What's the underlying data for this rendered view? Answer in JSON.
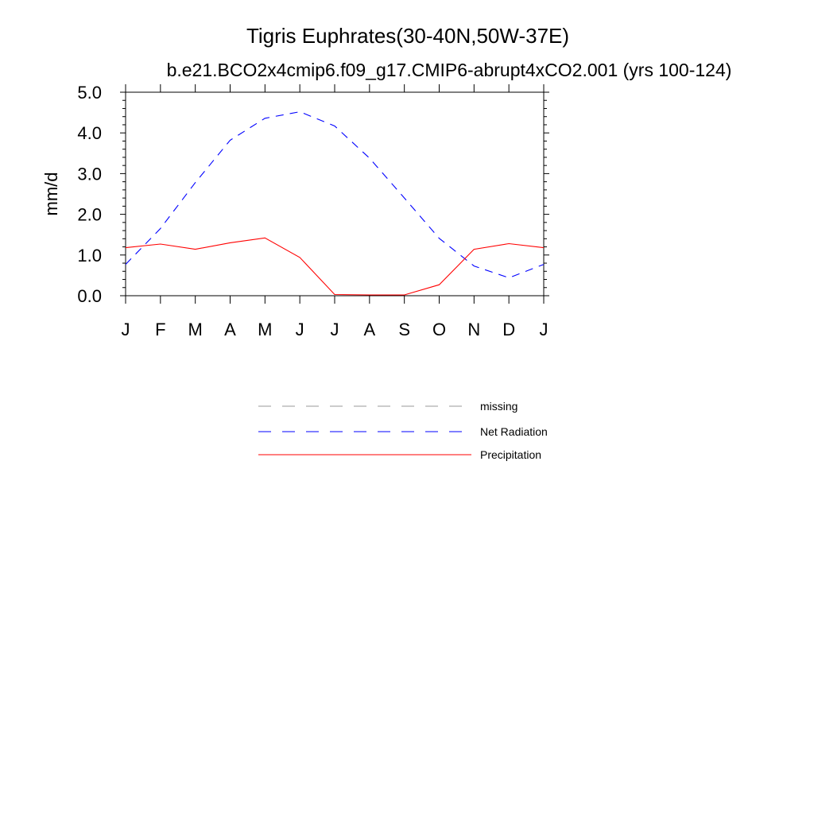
{
  "chart_data": {
    "type": "line",
    "title": "Tigris Euphrates(30-40N,50W-37E)",
    "subtitle": "b.e21.BCO2x4cmip6.f09_g17.CMIP6-abrupt4xCO2.001 (yrs 100-124)",
    "ylabel": "mm/d",
    "ylim": [
      0,
      5
    ],
    "yticks": [
      "0.0",
      "1.0",
      "2.0",
      "3.0",
      "4.0",
      "5.0"
    ],
    "x_labels": [
      "J",
      "F",
      "M",
      "A",
      "M",
      "J",
      "J",
      "A",
      "S",
      "O",
      "N",
      "D",
      "J"
    ],
    "series": [
      {
        "name": "Net Radiation",
        "color": "#0000ff",
        "dash": "dashed",
        "values": [
          0.77,
          1.65,
          2.78,
          3.82,
          4.36,
          4.52,
          4.17,
          3.38,
          2.4,
          1.41,
          0.73,
          0.44,
          0.77
        ]
      },
      {
        "name": "Precipitation",
        "color": "#ff0000",
        "dash": "solid",
        "values": [
          1.18,
          1.27,
          1.14,
          1.3,
          1.42,
          0.94,
          0.03,
          0.02,
          0.02,
          0.27,
          1.14,
          1.28,
          1.18
        ]
      }
    ],
    "legend": {
      "placement": "below",
      "entries": [
        {
          "label": "missing",
          "color": "#999999",
          "dash": "dashed"
        },
        {
          "label": "Net Radiation",
          "color": "#0000ff",
          "dash": "dashed"
        },
        {
          "label": "Precipitation",
          "color": "#ff0000",
          "dash": "solid"
        }
      ]
    }
  }
}
